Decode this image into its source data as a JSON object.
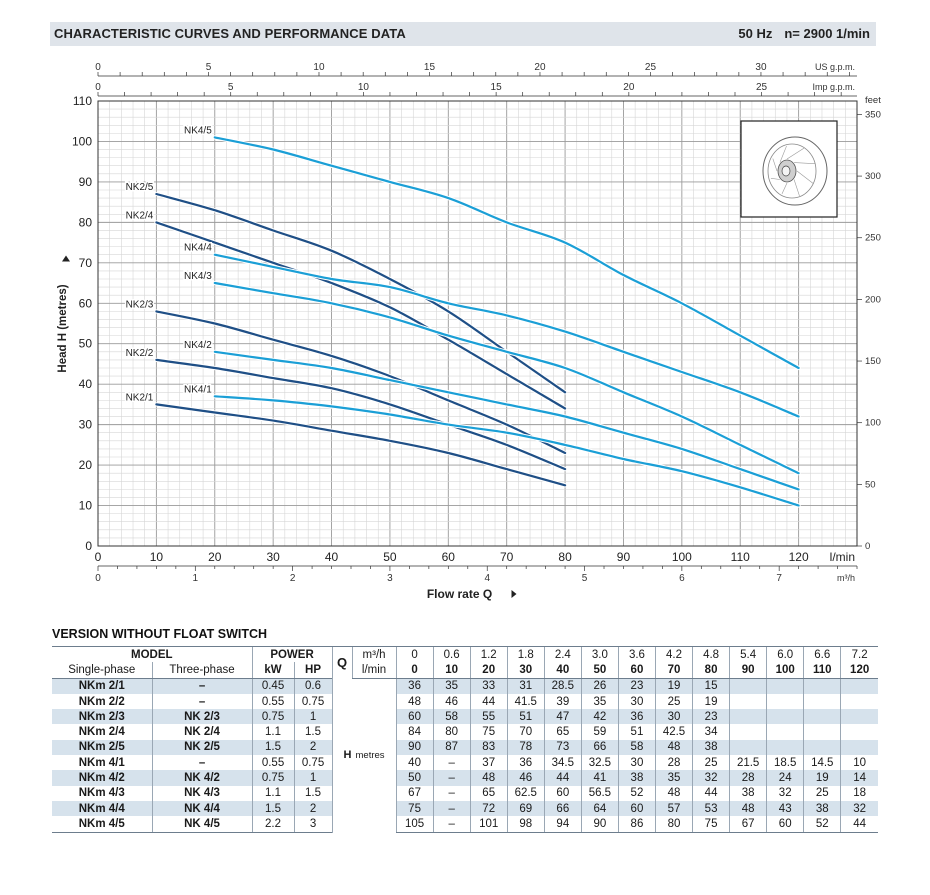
{
  "header": {
    "title": "CHARACTERISTIC CURVES AND PERFORMANCE DATA",
    "frequency": "50 Hz",
    "speed": "n= 2900  1/min"
  },
  "chart_data": {
    "type": "line",
    "title": "",
    "xlabel": "Flow rate Q",
    "ylabel": "Head H (metres)",
    "x_unit_label": "l/min",
    "xlim": [
      0,
      130
    ],
    "ylim": [
      0,
      110
    ],
    "x_ticks": [
      0,
      10,
      20,
      30,
      40,
      50,
      60,
      70,
      80,
      90,
      100,
      110,
      120
    ],
    "y_ticks": [
      0,
      10,
      20,
      30,
      40,
      50,
      60,
      70,
      80,
      90,
      100,
      110
    ],
    "grid": true,
    "secondary_axes": {
      "us_gpm": {
        "label": "US g.p.m.",
        "ticks": [
          "0",
          "5",
          "10",
          "15",
          "20",
          "25",
          "30"
        ],
        "lpm_per_unit": 3.785
      },
      "imp_gpm": {
        "label": "Imp g.p.m.",
        "ticks": [
          "0",
          "5",
          "10",
          "15",
          "20",
          "25"
        ],
        "lpm_per_unit": 4.546
      },
      "m3h": {
        "label": "m³/h",
        "ticks": [
          "0",
          "1",
          "2",
          "3",
          "4",
          "5",
          "6",
          "7"
        ],
        "lpm_per_unit": 16.667
      },
      "feet": {
        "label": "feet",
        "ticks": [
          "0",
          "50",
          "100",
          "150",
          "200",
          "250",
          "300",
          "350"
        ],
        "m_per_unit": 0.3048
      }
    },
    "series": [
      {
        "name": "NK2/1",
        "color": "#1f4f86",
        "x": [
          10,
          20,
          30,
          40,
          50,
          60,
          70,
          80
        ],
        "y": [
          35,
          33,
          31,
          28.5,
          26,
          23,
          19,
          15
        ]
      },
      {
        "name": "NK2/2",
        "color": "#1f4f86",
        "x": [
          10,
          20,
          30,
          40,
          50,
          60,
          70,
          80
        ],
        "y": [
          46,
          44,
          41.5,
          39,
          35,
          30,
          25,
          19
        ]
      },
      {
        "name": "NK2/3",
        "color": "#1f4f86",
        "x": [
          10,
          20,
          30,
          40,
          50,
          60,
          70,
          80
        ],
        "y": [
          58,
          55,
          51,
          47,
          42,
          36,
          30,
          23
        ]
      },
      {
        "name": "NK2/4",
        "color": "#1f4f86",
        "x": [
          10,
          20,
          30,
          40,
          50,
          60,
          70,
          80
        ],
        "y": [
          80,
          75,
          70,
          65,
          59,
          51,
          42.5,
          34
        ]
      },
      {
        "name": "NK2/5",
        "color": "#1f4f86",
        "x": [
          10,
          20,
          30,
          40,
          50,
          60,
          70,
          80
        ],
        "y": [
          87,
          83,
          78,
          73,
          66,
          58,
          48,
          38
        ]
      },
      {
        "name": "NK4/1",
        "color": "#1b9fd6",
        "x": [
          20,
          30,
          40,
          50,
          60,
          70,
          80,
          90,
          100,
          110,
          120
        ],
        "y": [
          37,
          36,
          34.5,
          32.5,
          30,
          28,
          25,
          21.5,
          18.5,
          14.5,
          10
        ]
      },
      {
        "name": "NK4/2",
        "color": "#1b9fd6",
        "x": [
          20,
          30,
          40,
          50,
          60,
          70,
          80,
          90,
          100,
          110,
          120
        ],
        "y": [
          48,
          46,
          44,
          41,
          38,
          35,
          32,
          28,
          24,
          19,
          14
        ]
      },
      {
        "name": "NK4/3",
        "color": "#1b9fd6",
        "x": [
          20,
          30,
          40,
          50,
          60,
          70,
          80,
          90,
          100,
          110,
          120
        ],
        "y": [
          65,
          62.5,
          60,
          56.5,
          52,
          48,
          44,
          38,
          32,
          25,
          18
        ]
      },
      {
        "name": "NK4/4",
        "color": "#1b9fd6",
        "x": [
          20,
          30,
          40,
          50,
          60,
          70,
          80,
          90,
          100,
          110,
          120
        ],
        "y": [
          72,
          69,
          66,
          64,
          60,
          57,
          53,
          48,
          43,
          38,
          32
        ]
      },
      {
        "name": "NK4/5",
        "color": "#1b9fd6",
        "x": [
          20,
          30,
          40,
          50,
          60,
          70,
          80,
          90,
          100,
          110,
          120
        ],
        "y": [
          101,
          98,
          94,
          90,
          86,
          80,
          75,
          67,
          60,
          52,
          44
        ]
      }
    ]
  },
  "table": {
    "title": "VERSION WITHOUT FLOAT SWITCH",
    "headers": {
      "model": "MODEL",
      "power": "POWER",
      "q": "Q",
      "single_phase": "Single-phase",
      "three_phase": "Three-phase",
      "kw": "kW",
      "hp": "HP",
      "m3h_unit": "m³/h",
      "lmin_unit": "l/min",
      "h": "H",
      "h_unit": "metres"
    },
    "q_m3h": [
      "0",
      "0.6",
      "1.2",
      "1.8",
      "2.4",
      "3.0",
      "3.6",
      "4.2",
      "4.8",
      "5.4",
      "6.0",
      "6.6",
      "7.2"
    ],
    "q_lmin": [
      "0",
      "10",
      "20",
      "30",
      "40",
      "50",
      "60",
      "70",
      "80",
      "90",
      "100",
      "110",
      "120"
    ],
    "rows": [
      {
        "single": "NKm 2/1",
        "three": "–",
        "kw": "0.45",
        "hp": "0.6",
        "h": [
          "36",
          "35",
          "33",
          "31",
          "28.5",
          "26",
          "23",
          "19",
          "15",
          "",
          "",
          "",
          ""
        ]
      },
      {
        "single": "NKm 2/2",
        "three": "–",
        "kw": "0.55",
        "hp": "0.75",
        "h": [
          "48",
          "46",
          "44",
          "41.5",
          "39",
          "35",
          "30",
          "25",
          "19",
          "",
          "",
          "",
          ""
        ]
      },
      {
        "single": "NKm 2/3",
        "three": "NK 2/3",
        "kw": "0.75",
        "hp": "1",
        "h": [
          "60",
          "58",
          "55",
          "51",
          "47",
          "42",
          "36",
          "30",
          "23",
          "",
          "",
          "",
          ""
        ]
      },
      {
        "single": "NKm 2/4",
        "three": "NK 2/4",
        "kw": "1.1",
        "hp": "1.5",
        "h": [
          "84",
          "80",
          "75",
          "70",
          "65",
          "59",
          "51",
          "42.5",
          "34",
          "",
          "",
          "",
          ""
        ]
      },
      {
        "single": "NKm 2/5",
        "three": "NK 2/5",
        "kw": "1.5",
        "hp": "2",
        "h": [
          "90",
          "87",
          "83",
          "78",
          "73",
          "66",
          "58",
          "48",
          "38",
          "",
          "",
          "",
          ""
        ]
      },
      {
        "single": "NKm 4/1",
        "three": "–",
        "kw": "0.55",
        "hp": "0.75",
        "h": [
          "40",
          "–",
          "37",
          "36",
          "34.5",
          "32.5",
          "30",
          "28",
          "25",
          "21.5",
          "18.5",
          "14.5",
          "10"
        ]
      },
      {
        "single": "NKm 4/2",
        "three": "NK 4/2",
        "kw": "0.75",
        "hp": "1",
        "h": [
          "50",
          "–",
          "48",
          "46",
          "44",
          "41",
          "38",
          "35",
          "32",
          "28",
          "24",
          "19",
          "14"
        ]
      },
      {
        "single": "NKm 4/3",
        "three": "NK 4/3",
        "kw": "1.1",
        "hp": "1.5",
        "h": [
          "67",
          "–",
          "65",
          "62.5",
          "60",
          "56.5",
          "52",
          "48",
          "44",
          "38",
          "32",
          "25",
          "18"
        ]
      },
      {
        "single": "NKm 4/4",
        "three": "NK 4/4",
        "kw": "1.5",
        "hp": "2",
        "h": [
          "75",
          "–",
          "72",
          "69",
          "66",
          "64",
          "60",
          "57",
          "53",
          "48",
          "43",
          "38",
          "32"
        ]
      },
      {
        "single": "NKm 4/5",
        "three": "NK 4/5",
        "kw": "2.2",
        "hp": "3",
        "h": [
          "105",
          "–",
          "101",
          "98",
          "94",
          "90",
          "86",
          "80",
          "75",
          "67",
          "60",
          "52",
          "44"
        ]
      }
    ]
  }
}
